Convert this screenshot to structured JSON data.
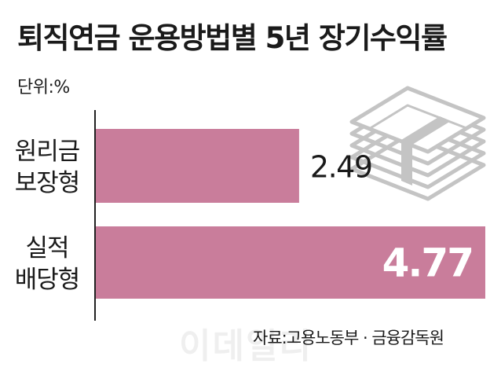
{
  "chart_data": {
    "type": "bar",
    "orientation": "horizontal",
    "title": "퇴직연금 운용방법별 5년 장기수익률",
    "unit_label": "단위:%",
    "categories": [
      [
        "원리금",
        "보장형"
      ],
      [
        "실적",
        "배당형"
      ]
    ],
    "values": [
      2.49,
      4.77
    ],
    "value_labels": [
      "2.49",
      "4.77"
    ],
    "xlim": [
      0,
      4.77
    ],
    "bar_color": "#c97d9b",
    "grid": false,
    "legend": "none",
    "source": "자료:고용노동부 · 금융감독원"
  },
  "decor": {
    "icon": "stack-of-banknotes-icon",
    "watermark": "이데일리"
  }
}
